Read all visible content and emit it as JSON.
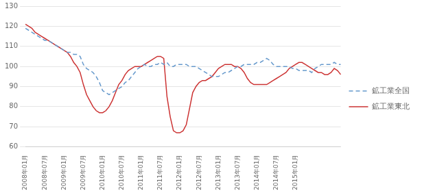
{
  "chart_data": {
    "type": "line",
    "categories": [
      "2008年01月",
      null,
      null,
      null,
      null,
      null,
      "2008年07月",
      null,
      null,
      null,
      null,
      null,
      "2009年01月",
      null,
      null,
      null,
      null,
      null,
      "2009年07月",
      null,
      null,
      null,
      null,
      null,
      "2010年01月",
      null,
      null,
      null,
      null,
      null,
      "2010年07月",
      null,
      null,
      null,
      null,
      null,
      "2011年01月",
      null,
      null,
      null,
      null,
      null,
      "2011年07月",
      null,
      null,
      null,
      null,
      null,
      "2012年01月",
      null,
      null,
      null,
      null,
      null,
      "2012年07月",
      null,
      null,
      null,
      null,
      null,
      "2013年01月",
      null,
      null,
      null,
      null,
      null,
      "2013年07月",
      null,
      null,
      null,
      null,
      null,
      "2014年01月",
      null,
      null,
      null,
      null,
      null,
      "2014年07月",
      null,
      null,
      null,
      null,
      null,
      "2015年01月",
      null,
      null,
      null,
      null,
      null,
      null,
      null,
      null,
      null,
      null,
      null,
      null,
      null,
      null
    ],
    "series": [
      {
        "name": "鉱工業全国",
        "color": "#6699CC",
        "line_style": "dashed",
        "values": [
          119,
          118,
          117,
          116,
          115,
          114,
          113,
          113,
          112,
          111,
          110,
          109,
          108,
          107,
          107,
          106,
          106,
          105,
          101,
          99,
          98,
          97,
          95,
          92,
          88,
          87,
          86,
          87,
          88,
          89,
          90,
          92,
          93,
          95,
          97,
          99,
          100,
          101,
          100,
          100,
          101,
          101,
          102,
          101,
          102,
          100,
          100,
          101,
          101,
          101,
          101,
          100,
          100,
          100,
          99,
          98,
          97,
          96,
          95,
          95,
          95,
          96,
          97,
          97,
          98,
          99,
          100,
          100,
          101,
          101,
          101,
          101,
          102,
          102,
          103,
          104,
          103,
          101,
          100,
          100,
          100,
          100,
          100,
          99,
          99,
          98,
          98,
          98,
          98,
          97,
          99,
          100,
          101,
          101,
          101,
          101,
          102,
          101,
          101
        ]
      },
      {
        "name": "鉱工業東北",
        "color": "#CC3333",
        "line_style": "solid",
        "values": [
          121,
          120,
          119,
          117,
          116,
          115,
          114,
          113,
          112,
          111,
          110,
          109,
          108,
          107,
          105,
          102,
          100,
          97,
          91,
          86,
          83,
          80,
          78,
          77,
          77,
          78,
          80,
          83,
          87,
          91,
          93,
          96,
          98,
          99,
          100,
          100,
          100,
          101,
          102,
          103,
          104,
          105,
          105,
          104,
          85,
          75,
          68,
          67,
          67,
          68,
          71,
          79,
          87,
          90,
          92,
          93,
          93,
          94,
          95,
          97,
          99,
          100,
          101,
          101,
          101,
          100,
          100,
          99,
          97,
          94,
          92,
          91,
          91,
          91,
          91,
          91,
          92,
          93,
          94,
          95,
          96,
          97,
          99,
          100,
          101,
          102,
          102,
          101,
          100,
          99,
          98,
          97,
          97,
          96,
          96,
          97,
          99,
          98,
          96
        ]
      }
    ],
    "ylim": [
      60,
      130
    ],
    "yticks": [
      60,
      70,
      80,
      90,
      100,
      110,
      120,
      130
    ],
    "grid": true,
    "legend": "right"
  }
}
